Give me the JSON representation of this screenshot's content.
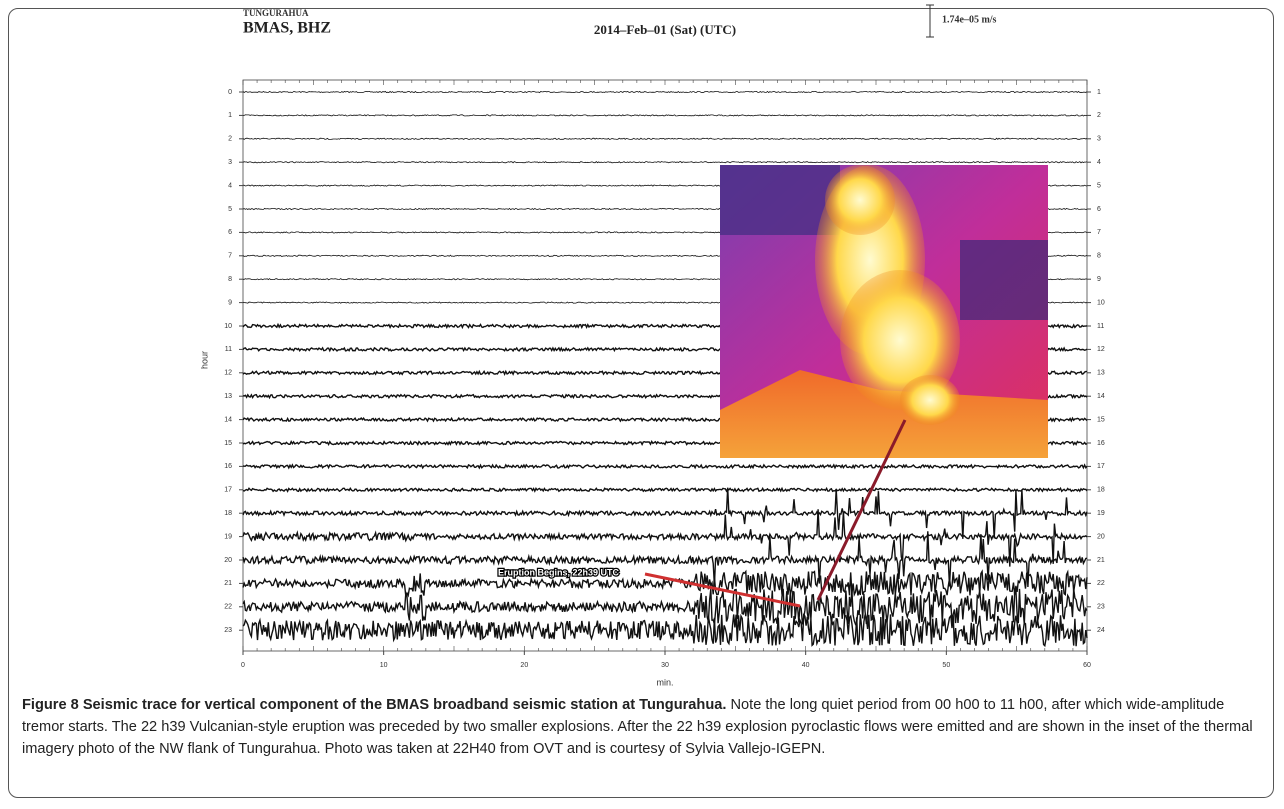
{
  "figure": {
    "station_region": "TUNGURAHUA",
    "station": "BMAS, BHZ",
    "title": "2014–Feb–01 (Sat) (UTC)",
    "scale_label": "1.74e–05 m/s",
    "y_label": "hour",
    "x_label": "min.",
    "left_ticks": [
      0,
      1,
      2,
      3,
      4,
      5,
      6,
      7,
      8,
      9,
      10,
      11,
      12,
      13,
      14,
      15,
      16,
      17,
      18,
      19,
      20,
      21,
      22,
      23
    ],
    "right_ticks": [
      1,
      2,
      3,
      4,
      5,
      6,
      7,
      8,
      9,
      10,
      11,
      12,
      13,
      14,
      15,
      16,
      17,
      18,
      19,
      20,
      21,
      22,
      23,
      24
    ],
    "x_ticks": [
      0,
      10,
      20,
      30,
      40,
      50,
      60
    ],
    "xlim": [
      0,
      60
    ],
    "annotation": "Eruption Begins, 22h39 UTC"
  },
  "caption": {
    "label": "Figure 8",
    "heading": "Seismic trace for vertical component of the BMAS broadband seismic station at Tungurahua.",
    "text": "Note the long quiet period from 00 h00 to 11 h00, after which wide-amplitude tremor starts. The 22 h39 Vulcanian-style eruption was preceded by two smaller explosions. After the 22 h39 explosion pyroclastic flows were emitted and are shown in the inset of the thermal imagery photo of the NW flank of Tungurahua. Photo was taken at 22H40 from OVT and is courtesy of Sylvia Vallejo-IGEPN."
  }
}
